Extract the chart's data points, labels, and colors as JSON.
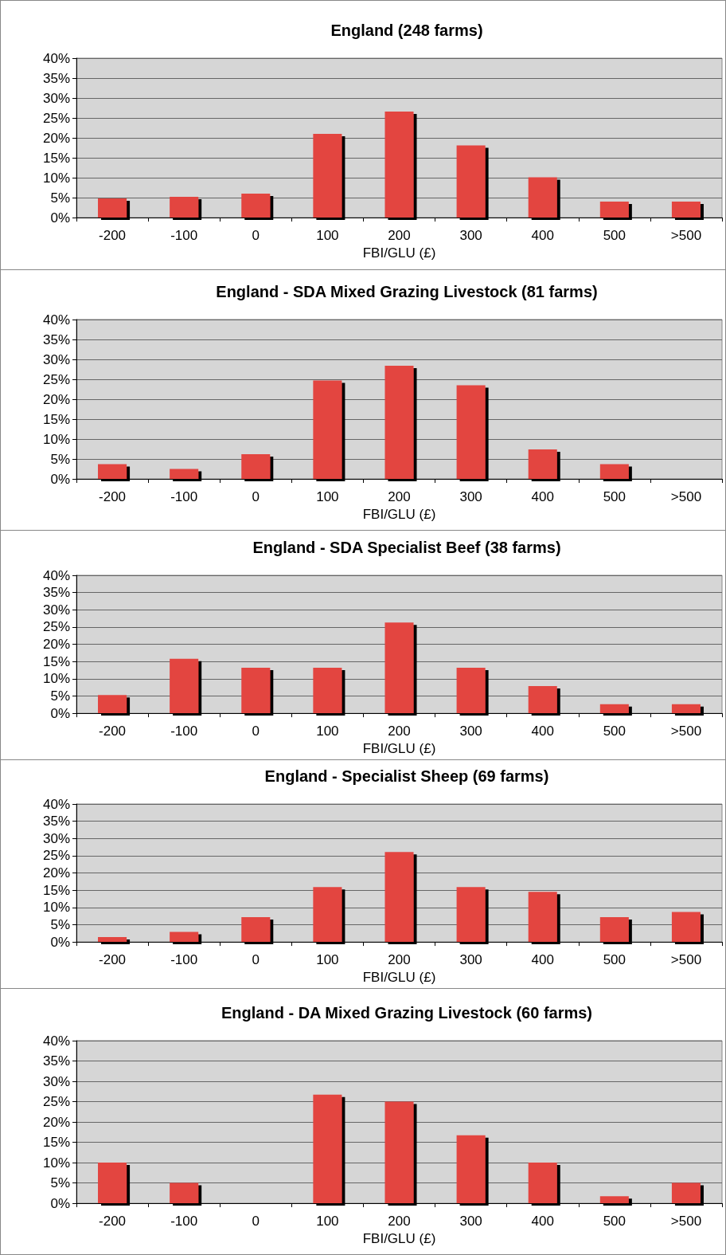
{
  "chart_data": [
    {
      "type": "bar",
      "title": "England (248 farms)",
      "xlabel": "FBI/GLU (£)",
      "categories": [
        "-200",
        "-100",
        "0",
        "100",
        "200",
        "300",
        "400",
        "500",
        ">500"
      ],
      "values": [
        4.8,
        5.2,
        6.0,
        21.0,
        26.6,
        18.1,
        10.1,
        4.0,
        4.0
      ],
      "color": "#e34441",
      "ylim": [
        0,
        40
      ],
      "yticks": [
        {
          "value": 0,
          "label": "0%"
        },
        {
          "value": 5,
          "label": "5%"
        },
        {
          "value": 10,
          "label": "10%"
        },
        {
          "value": 15,
          "label": "15%"
        },
        {
          "value": 20,
          "label": "20%"
        },
        {
          "value": 25,
          "label": "25%"
        },
        {
          "value": 30,
          "label": "30%"
        },
        {
          "value": 35,
          "label": "35%"
        },
        {
          "value": 40,
          "label": "40%"
        }
      ],
      "grid": "y"
    },
    {
      "type": "bar",
      "title": "England - SDA Mixed Grazing Livestock (81 farms)",
      "xlabel": "FBI/GLU (£)",
      "categories": [
        "-200",
        "-100",
        "0",
        "100",
        "200",
        "300",
        "400",
        "500",
        ">500"
      ],
      "values": [
        3.7,
        2.5,
        6.2,
        24.7,
        28.4,
        23.5,
        7.4,
        3.7,
        0
      ],
      "color": "#e34441",
      "ylim": [
        0,
        40
      ],
      "yticks": [
        {
          "value": 0,
          "label": "0%"
        },
        {
          "value": 5,
          "label": "5%"
        },
        {
          "value": 10,
          "label": "10%"
        },
        {
          "value": 15,
          "label": "15%"
        },
        {
          "value": 20,
          "label": "20%"
        },
        {
          "value": 25,
          "label": "25%"
        },
        {
          "value": 30,
          "label": "30%"
        },
        {
          "value": 35,
          "label": "35%"
        },
        {
          "value": 40,
          "label": "40%"
        }
      ],
      "grid": "y"
    },
    {
      "type": "bar",
      "title": "England - SDA Specialist Beef (38 farms)",
      "xlabel": "FBI/GLU (£)",
      "categories": [
        "-200",
        "-100",
        "0",
        "100",
        "200",
        "300",
        "400",
        "500",
        ">500"
      ],
      "values": [
        5.3,
        15.8,
        13.2,
        13.2,
        26.3,
        13.2,
        7.9,
        2.6,
        2.6
      ],
      "color": "#e34441",
      "ylim": [
        0,
        40
      ],
      "yticks": [
        {
          "value": 0,
          "label": "0%"
        },
        {
          "value": 5,
          "label": "5%"
        },
        {
          "value": 10,
          "label": "10%"
        },
        {
          "value": 15,
          "label": "15%"
        },
        {
          "value": 20,
          "label": "20%"
        },
        {
          "value": 25,
          "label": "25%"
        },
        {
          "value": 30,
          "label": "30%"
        },
        {
          "value": 35,
          "label": "35%"
        },
        {
          "value": 40,
          "label": "40%"
        }
      ],
      "grid": "y"
    },
    {
      "type": "bar",
      "title": "England - Specialist Sheep (69 farms)",
      "xlabel": "FBI/GLU (£)",
      "categories": [
        "-200",
        "-100",
        "0",
        "100",
        "200",
        "300",
        "400",
        "500",
        ">500"
      ],
      "values": [
        1.4,
        2.9,
        7.2,
        15.9,
        26.1,
        15.9,
        14.5,
        7.2,
        8.7
      ],
      "color": "#e34441",
      "ylim": [
        0,
        40
      ],
      "yticks": [
        {
          "value": 0,
          "label": "0%"
        },
        {
          "value": 5,
          "label": "5%"
        },
        {
          "value": 10,
          "label": "10%"
        },
        {
          "value": 15,
          "label": "15%"
        },
        {
          "value": 20,
          "label": "20%"
        },
        {
          "value": 25,
          "label": "25%"
        },
        {
          "value": 30,
          "label": "30%"
        },
        {
          "value": 35,
          "label": "35%"
        },
        {
          "value": 40,
          "label": "40%"
        }
      ],
      "grid": "y"
    },
    {
      "type": "bar",
      "title": "England - DA Mixed Grazing Livestock (60 farms)",
      "xlabel": "FBI/GLU (£)",
      "categories": [
        "-200",
        "-100",
        "0",
        "100",
        "200",
        "300",
        "400",
        "500",
        ">500"
      ],
      "values": [
        10.0,
        5.0,
        0,
        26.7,
        25.0,
        16.7,
        10.0,
        1.7,
        5.0
      ],
      "color": "#e34441",
      "ylim": [
        0,
        40
      ],
      "yticks": [
        {
          "value": 0,
          "label": "0%"
        },
        {
          "value": 5,
          "label": "5%"
        },
        {
          "value": 10,
          "label": "10%"
        },
        {
          "value": 15,
          "label": "15%"
        },
        {
          "value": 20,
          "label": "20%"
        },
        {
          "value": 25,
          "label": "25%"
        },
        {
          "value": 30,
          "label": "30%"
        },
        {
          "value": 35,
          "label": "35%"
        },
        {
          "value": 40,
          "label": "40%"
        }
      ],
      "grid": "y"
    }
  ]
}
